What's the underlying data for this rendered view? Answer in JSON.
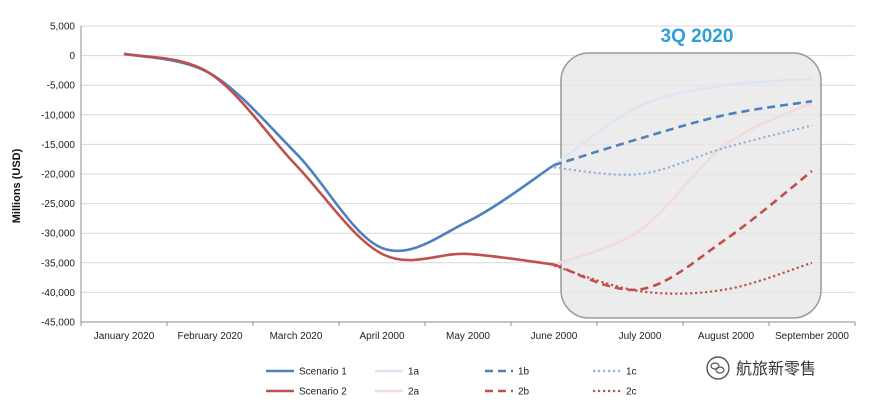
{
  "chart_data": {
    "type": "line",
    "ylabel": "Millions (USD)",
    "xlabel": "",
    "categories": [
      "January 2020",
      "February 2020",
      "March 2020",
      "April 2000",
      "May 2000",
      "June 2000",
      "July 2000",
      "August 2000",
      "September 2000"
    ],
    "ylim": [
      -45000,
      5000
    ],
    "y_ticks": [
      5000,
      0,
      -5000,
      -10000,
      -15000,
      -20000,
      -25000,
      -30000,
      -35000,
      -40000,
      -45000
    ],
    "y_tick_labels": [
      "5,000",
      "0",
      "-5,000",
      "-10,000",
      "-15,000",
      "-20,000",
      "-25,000",
      "-30,000",
      "-35,000",
      "-40,000",
      "-45,000"
    ],
    "grid": "horizontal",
    "legend_position": "bottom",
    "series": [
      {
        "name": "Scenario 1",
        "color": "#4f81bd",
        "style": "solid",
        "points": [
          [
            0,
            300
          ],
          [
            1,
            -3000
          ],
          [
            2,
            -16500
          ],
          [
            3,
            -32500
          ],
          [
            4,
            -28000
          ],
          [
            5,
            -18500
          ]
        ]
      },
      {
        "name": "1a",
        "color": "#dce6f2",
        "style": "solid",
        "points": [
          [
            5,
            -18500
          ],
          [
            6,
            -8500
          ],
          [
            7,
            -5000
          ],
          [
            8,
            -4000
          ]
        ]
      },
      {
        "name": "1b",
        "color": "#4f81bd",
        "style": "dash",
        "points": [
          [
            5,
            -18500
          ],
          [
            6,
            -14000
          ],
          [
            7,
            -10000
          ],
          [
            8,
            -7700
          ]
        ]
      },
      {
        "name": "1c",
        "color": "#95b3d7",
        "style": "dot",
        "points": [
          [
            5,
            -18900
          ],
          [
            6,
            -20000
          ],
          [
            7,
            -15500
          ],
          [
            8,
            -11800
          ]
        ]
      },
      {
        "name": "Scenario 2",
        "color": "#c0504d",
        "style": "solid",
        "points": [
          [
            0,
            300
          ],
          [
            1,
            -3000
          ],
          [
            2,
            -18500
          ],
          [
            3,
            -33500
          ],
          [
            4,
            -33500
          ],
          [
            5,
            -35300
          ]
        ]
      },
      {
        "name": "2a",
        "color": "#f2dcdb",
        "style": "solid",
        "points": [
          [
            5,
            -35300
          ],
          [
            6,
            -29500
          ],
          [
            7,
            -15000
          ],
          [
            8,
            -8000
          ]
        ]
      },
      {
        "name": "2b",
        "color": "#c0504d",
        "style": "dash",
        "points": [
          [
            5,
            -35300
          ],
          [
            6,
            -39500
          ],
          [
            7,
            -31000
          ],
          [
            8,
            -19500
          ]
        ]
      },
      {
        "name": "2c",
        "color": "#c0504d",
        "style": "dot",
        "points": [
          [
            5,
            -35500
          ],
          [
            6,
            -39800
          ],
          [
            7,
            -39500
          ],
          [
            8,
            -35000
          ]
        ]
      }
    ],
    "annotations": [
      {
        "text": "3Q 2020",
        "color": "#2e9fd8"
      }
    ]
  },
  "legend": [
    [
      "Scenario 1",
      "1a",
      "1b",
      "1c"
    ],
    [
      "Scenario 2",
      "2a",
      "2b",
      "2c"
    ]
  ],
  "watermark": {
    "text": "航旅新零售",
    "icon": "wechat-icon"
  }
}
